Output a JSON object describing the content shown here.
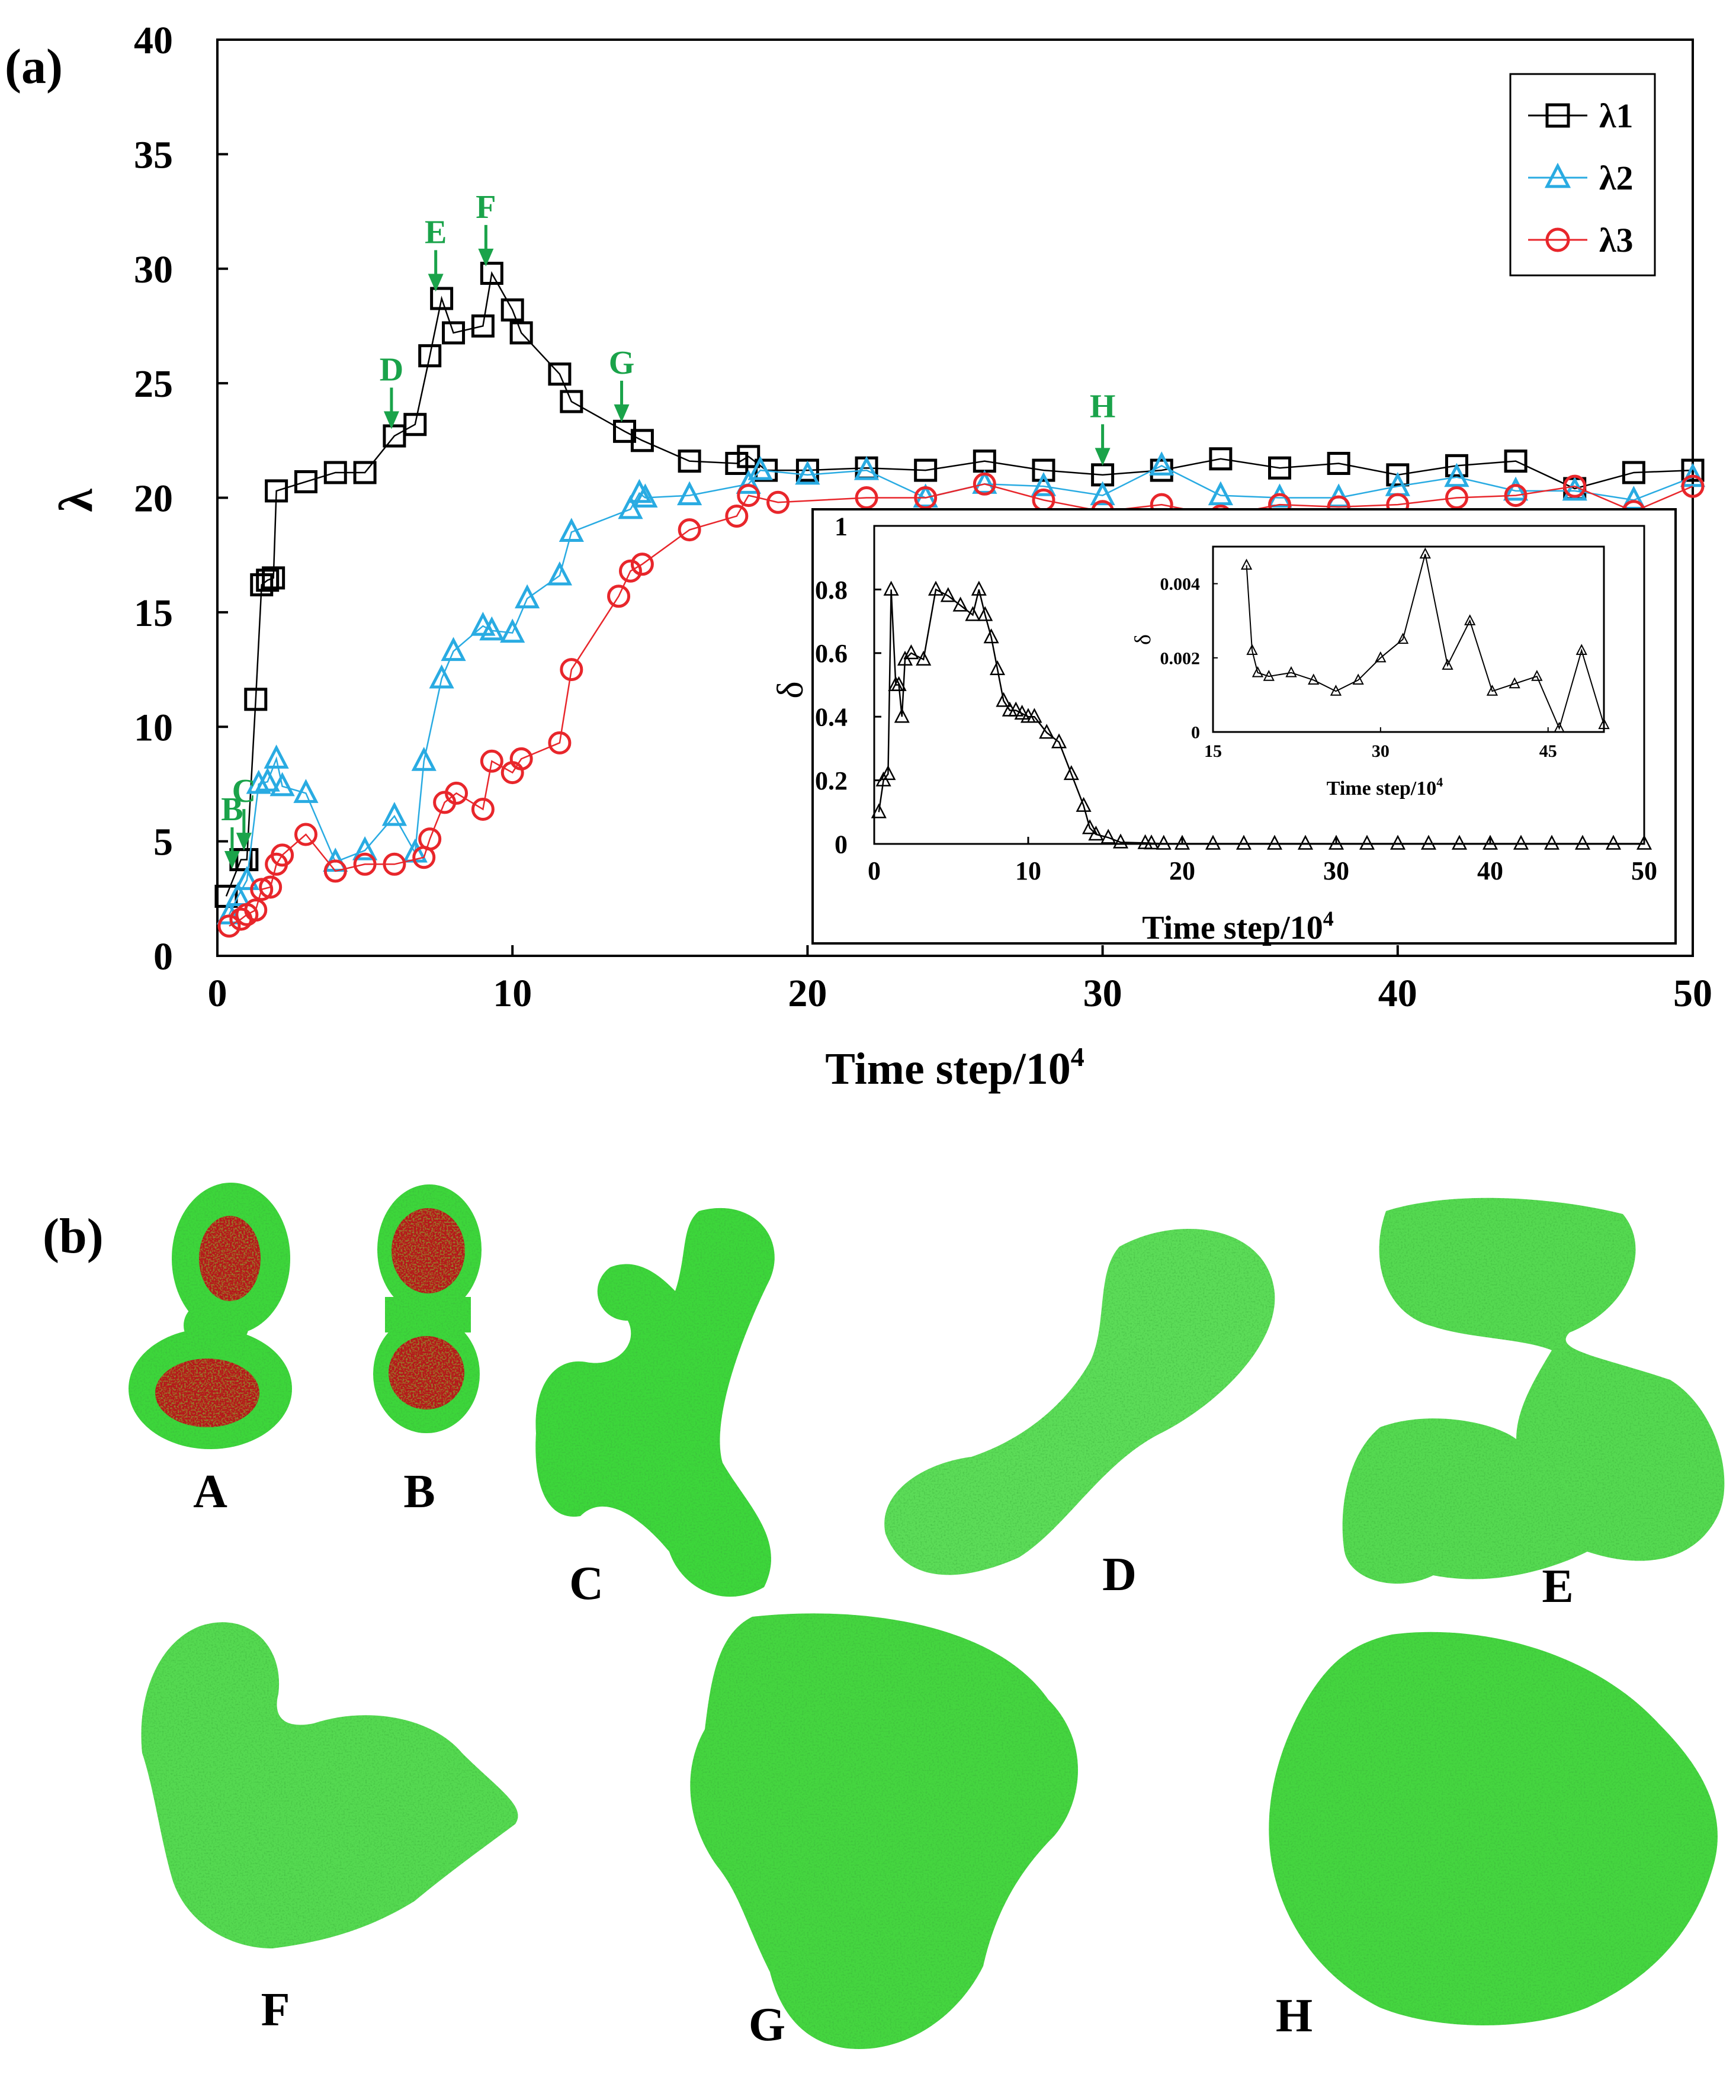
{
  "panel_labels": {
    "a": "(a)",
    "b": "(b)"
  },
  "chart_data": [
    {
      "type": "line",
      "panel": "(a)",
      "xlabel": "Time step/10",
      "xlabel_sup": "4",
      "ylabel": "λ",
      "xlim": [
        0,
        50
      ],
      "ylim": [
        0,
        40
      ],
      "xticks": [
        0,
        10,
        20,
        30,
        40,
        50
      ],
      "yticks": [
        0,
        5,
        10,
        15,
        20,
        25,
        30,
        35,
        40
      ],
      "legend": [
        "λ1",
        "λ2",
        "λ3"
      ],
      "legend_position": "top-right",
      "series": [
        {
          "name": "λ1",
          "color": "#000000",
          "marker": "square",
          "x": [
            0.3,
            0.8,
            1.0,
            1.3,
            1.5,
            1.7,
            1.9,
            2.0,
            3.0,
            4.0,
            5.0,
            6.0,
            6.7,
            7.2,
            7.6,
            8.0,
            9.0,
            9.3,
            10.0,
            10.3,
            11.6,
            12.0,
            13.8,
            14.4,
            16.0,
            17.6,
            18.0,
            18.6,
            20.0,
            22.0,
            24.0,
            26.0,
            28.0,
            30.0,
            32.0,
            34.0,
            36.0,
            38.0,
            40.0,
            42.0,
            44.0,
            46.0,
            48.0,
            50.0
          ],
          "y": [
            2.6,
            4.2,
            4.2,
            11.2,
            16.2,
            16.4,
            16.5,
            20.3,
            20.7,
            21.1,
            21.1,
            22.7,
            23.2,
            26.2,
            28.7,
            27.2,
            27.5,
            29.8,
            28.2,
            27.2,
            25.4,
            24.2,
            22.9,
            22.5,
            21.6,
            21.5,
            21.8,
            21.2,
            21.2,
            21.3,
            21.2,
            21.6,
            21.2,
            21.0,
            21.2,
            21.7,
            21.3,
            21.5,
            21.0,
            21.4,
            21.6,
            20.4,
            21.1,
            21.2
          ]
        },
        {
          "name": "λ2",
          "color": "#29abe2",
          "marker": "triangle",
          "x": [
            0.4,
            0.7,
            1.0,
            1.4,
            1.7,
            2.0,
            2.2,
            3.0,
            4.0,
            5.0,
            6.0,
            6.7,
            7.0,
            7.6,
            8.0,
            9.0,
            9.3,
            10.0,
            10.5,
            11.6,
            12.0,
            14.0,
            14.3,
            14.5,
            16.0,
            18.0,
            18.4,
            20.0,
            22.0,
            24.0,
            26.0,
            28.0,
            30.0,
            32.0,
            34.0,
            36.0,
            38.0,
            40.0,
            42.0,
            44.0,
            46.0,
            48.0,
            50.0
          ],
          "y": [
            1.8,
            2.6,
            3.3,
            7.5,
            7.6,
            8.6,
            7.4,
            7.1,
            4.1,
            4.6,
            6.1,
            4.5,
            8.5,
            12.1,
            13.3,
            14.4,
            14.2,
            14.1,
            15.6,
            16.6,
            18.5,
            19.5,
            20.2,
            20.0,
            20.1,
            20.6,
            21.2,
            21.0,
            21.2,
            20.0,
            20.6,
            20.5,
            20.1,
            21.4,
            20.1,
            20.0,
            20.0,
            20.5,
            20.9,
            20.3,
            20.3,
            19.9,
            20.9
          ]
        },
        {
          "name": "λ3",
          "color": "#e8262b",
          "marker": "circle",
          "x": [
            0.4,
            0.8,
            1.0,
            1.3,
            1.5,
            1.8,
            2.0,
            2.2,
            3.0,
            4.0,
            5.0,
            6.0,
            7.0,
            7.2,
            7.7,
            8.1,
            9.0,
            9.3,
            10.0,
            10.3,
            11.6,
            12.0,
            13.6,
            14.0,
            14.4,
            16.0,
            17.6,
            18.0,
            19.0,
            22.0,
            24.0,
            26.0,
            28.0,
            30.0,
            32.0,
            34.0,
            36.0,
            38.0,
            40.0,
            42.0,
            44.0,
            46.0,
            48.0,
            50.0
          ],
          "y": [
            1.3,
            1.6,
            1.8,
            2.0,
            2.9,
            3.0,
            4.0,
            4.4,
            5.3,
            3.7,
            4.0,
            4.0,
            4.3,
            5.1,
            6.7,
            7.1,
            6.4,
            8.5,
            8.0,
            8.6,
            9.3,
            12.5,
            15.7,
            16.8,
            17.1,
            18.6,
            19.2,
            20.1,
            19.8,
            20.0,
            20.0,
            20.6,
            19.9,
            19.4,
            19.7,
            19.2,
            19.7,
            19.6,
            19.7,
            20.0,
            20.1,
            20.5,
            19.4,
            20.5
          ]
        }
      ],
      "annotations": [
        {
          "label": "B",
          "x": 0.5,
          "y": 3.8
        },
        {
          "label": "C",
          "x": 0.9,
          "y": 4.6
        },
        {
          "label": "D",
          "x": 5.9,
          "y": 23.0
        },
        {
          "label": "E",
          "x": 7.4,
          "y": 29.0
        },
        {
          "label": "F",
          "x": 9.1,
          "y": 30.1
        },
        {
          "label": "G",
          "x": 13.7,
          "y": 23.3
        },
        {
          "label": "H",
          "x": 30.0,
          "y": 21.4
        }
      ],
      "annotation_color": "#1aa34a"
    },
    {
      "type": "line",
      "panel": "inset",
      "xlabel": "Time step/10",
      "xlabel_sup": "4",
      "ylabel": "δ",
      "xlim": [
        0,
        50
      ],
      "ylim": [
        0,
        1
      ],
      "xticks": [
        0,
        10,
        20,
        30,
        40,
        50
      ],
      "yticks": [
        0,
        0.2,
        0.4,
        0.6,
        0.8,
        1
      ],
      "ytick_labels": [
        "0",
        "0.2",
        "0.4",
        "0.6",
        "0.8",
        "1"
      ],
      "series": [
        {
          "name": "δ",
          "color": "#000000",
          "marker": "triangle",
          "x": [
            0.3,
            0.6,
            0.9,
            1.1,
            1.4,
            1.6,
            1.8,
            2.0,
            2.4,
            3.2,
            4.0,
            4.8,
            5.6,
            6.4,
            6.8,
            7.2,
            7.6,
            8.0,
            8.4,
            8.8,
            9.2,
            9.6,
            10.0,
            10.4,
            11.2,
            12.0,
            12.8,
            13.6,
            14.0,
            14.4,
            15.2,
            16.0,
            17.6,
            18.0,
            18.8,
            20.0,
            22.0,
            24.0,
            26.0,
            28.0,
            30.0,
            32.0,
            34.0,
            36.0,
            38.0,
            40.0,
            42.0,
            44.0,
            46.0,
            48.0,
            50.0
          ],
          "y": [
            0.1,
            0.2,
            0.22,
            0.8,
            0.5,
            0.5,
            0.4,
            0.58,
            0.6,
            0.58,
            0.8,
            0.78,
            0.75,
            0.72,
            0.8,
            0.72,
            0.65,
            0.55,
            0.45,
            0.42,
            0.42,
            0.41,
            0.4,
            0.4,
            0.35,
            0.32,
            0.22,
            0.12,
            0.05,
            0.03,
            0.02,
            0.005,
            0.003,
            0.002,
            0.001,
            0.001,
            0.001,
            0.001,
            0.001,
            0.001,
            0.001,
            0.001,
            0.001,
            0.001,
            0.001,
            0.001,
            0.001,
            0.001,
            0.001,
            0.001,
            0.001
          ]
        }
      ]
    },
    {
      "type": "line",
      "panel": "inset-zoom",
      "xlabel": "Time step/10",
      "xlabel_sup": "4",
      "ylabel": "δ",
      "xlim": [
        15,
        50
      ],
      "ylim": [
        0,
        0.005
      ],
      "xticks": [
        15,
        30,
        45
      ],
      "yticks": [
        0,
        0.002,
        0.004
      ],
      "ytick_labels": [
        "0",
        "0.002",
        "0.004"
      ],
      "series": [
        {
          "name": "δ",
          "color": "#000000",
          "marker": "triangle",
          "x": [
            18.0,
            18.5,
            19.0,
            20.0,
            22.0,
            24.0,
            26.0,
            28.0,
            30.0,
            32.0,
            34.0,
            36.0,
            38.0,
            40.0,
            42.0,
            44.0,
            46.0,
            48.0,
            50.0
          ],
          "y": [
            0.0045,
            0.0022,
            0.0016,
            0.0015,
            0.0016,
            0.0014,
            0.0011,
            0.0014,
            0.002,
            0.0025,
            0.0048,
            0.0018,
            0.003,
            0.0011,
            0.0013,
            0.0015,
            0.0001,
            0.0022,
            0.0002
          ]
        }
      ]
    }
  ],
  "snapshots": [
    "A",
    "B",
    "C",
    "D",
    "E",
    "F",
    "G",
    "H"
  ],
  "colors": {
    "shell": "#3dd63a",
    "shell_light": "#6fe56b",
    "core": "#b5121b",
    "grey": "#bdbdbd"
  }
}
